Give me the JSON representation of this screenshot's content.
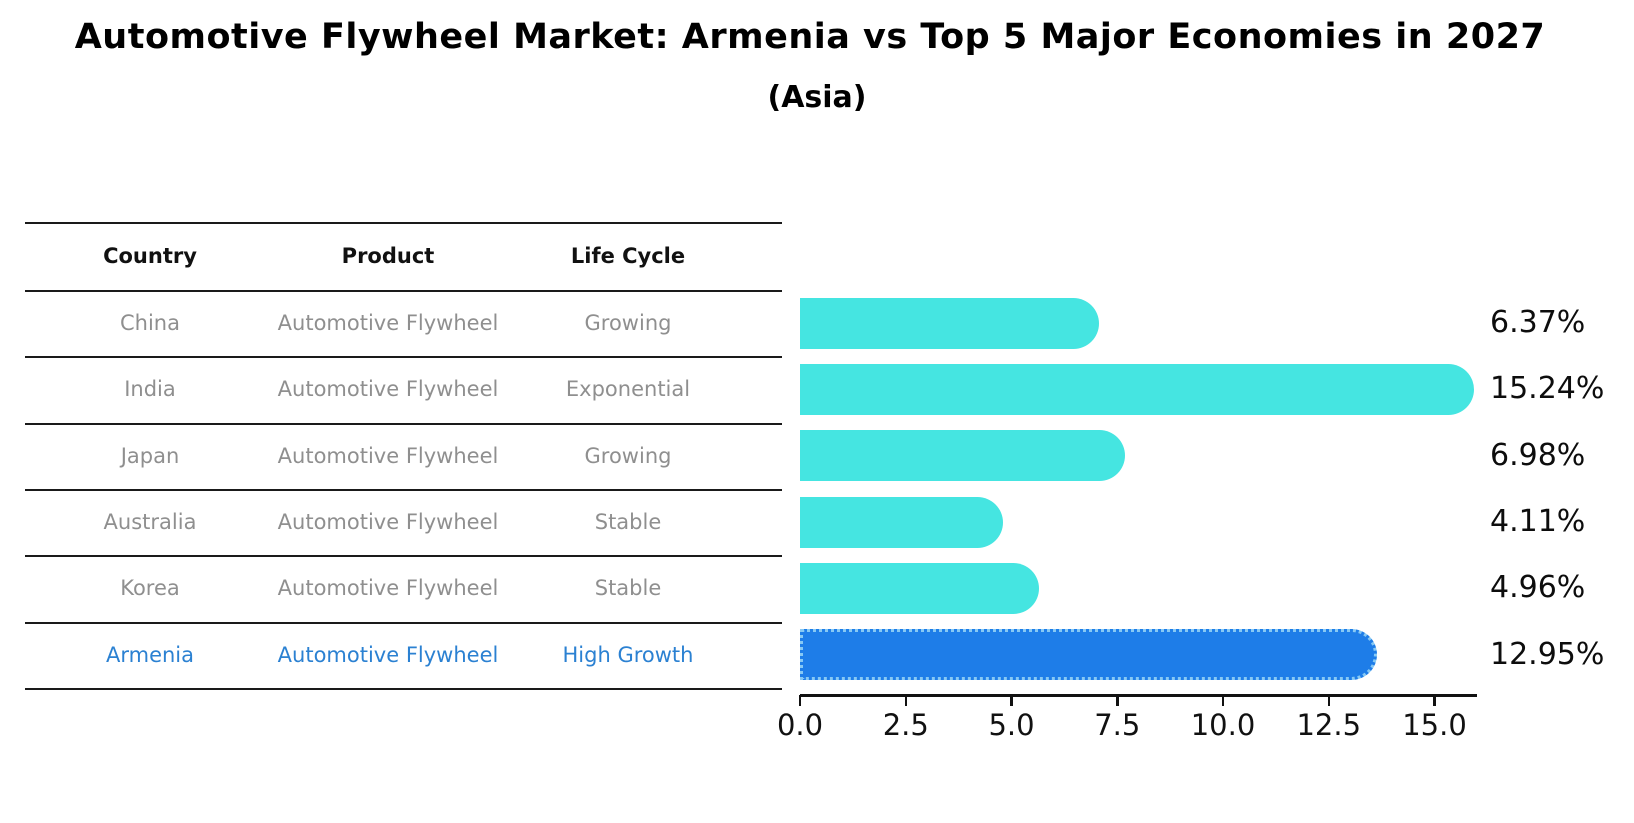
{
  "header": {
    "title": "Automotive Flywheel Market: Armenia vs Top 5 Major Economies in 2027",
    "subtitle": "(Asia)"
  },
  "table": {
    "columns": [
      "Country",
      "Product",
      "Life Cycle"
    ],
    "rows": [
      {
        "country": "China",
        "product": "Automotive Flywheel",
        "life_cycle": "Growing",
        "highlight": false
      },
      {
        "country": "India",
        "product": "Automotive Flywheel",
        "life_cycle": "Exponential",
        "highlight": false
      },
      {
        "country": "Japan",
        "product": "Automotive Flywheel",
        "life_cycle": "Growing",
        "highlight": false
      },
      {
        "country": "Australia",
        "product": "Automotive Flywheel",
        "life_cycle": "Stable",
        "highlight": false
      },
      {
        "country": "Korea",
        "product": "Automotive Flywheel",
        "life_cycle": "Stable",
        "highlight": false
      },
      {
        "country": "Armenia",
        "product": "Automotive Flywheel",
        "life_cycle": "High Growth",
        "highlight": true
      }
    ]
  },
  "chart_data": {
    "type": "bar",
    "orientation": "horizontal",
    "title": "Automotive Flywheel Market: Armenia vs Top 5 Major Economies in 2027",
    "subtitle": "(Asia)",
    "categories": [
      "China",
      "India",
      "Japan",
      "Australia",
      "Korea",
      "Armenia"
    ],
    "values": [
      6.37,
      15.24,
      6.98,
      4.11,
      4.96,
      12.95
    ],
    "value_labels": [
      "6.37%",
      "15.24%",
      "6.98%",
      "4.11%",
      "4.96%",
      "12.95%"
    ],
    "highlight_category": "Armenia",
    "xlabel": "",
    "ylabel": "",
    "xlim": [
      0,
      16
    ],
    "xticks": [
      0.0,
      2.5,
      5.0,
      7.5,
      10.0,
      12.5,
      15.0
    ],
    "xtick_labels": [
      "0.0",
      "2.5",
      "5.0",
      "7.5",
      "10.0",
      "12.5",
      "15.0"
    ],
    "grid": false,
    "legend": false,
    "colors": {
      "bar_default": "#45e5e1",
      "bar_highlight": "#1e7de8",
      "bar_highlight_edge": "#87c9f4",
      "highlight_text": "#2b81d2",
      "table_text": "#8f8f8f",
      "header_text": "#111111"
    }
  }
}
